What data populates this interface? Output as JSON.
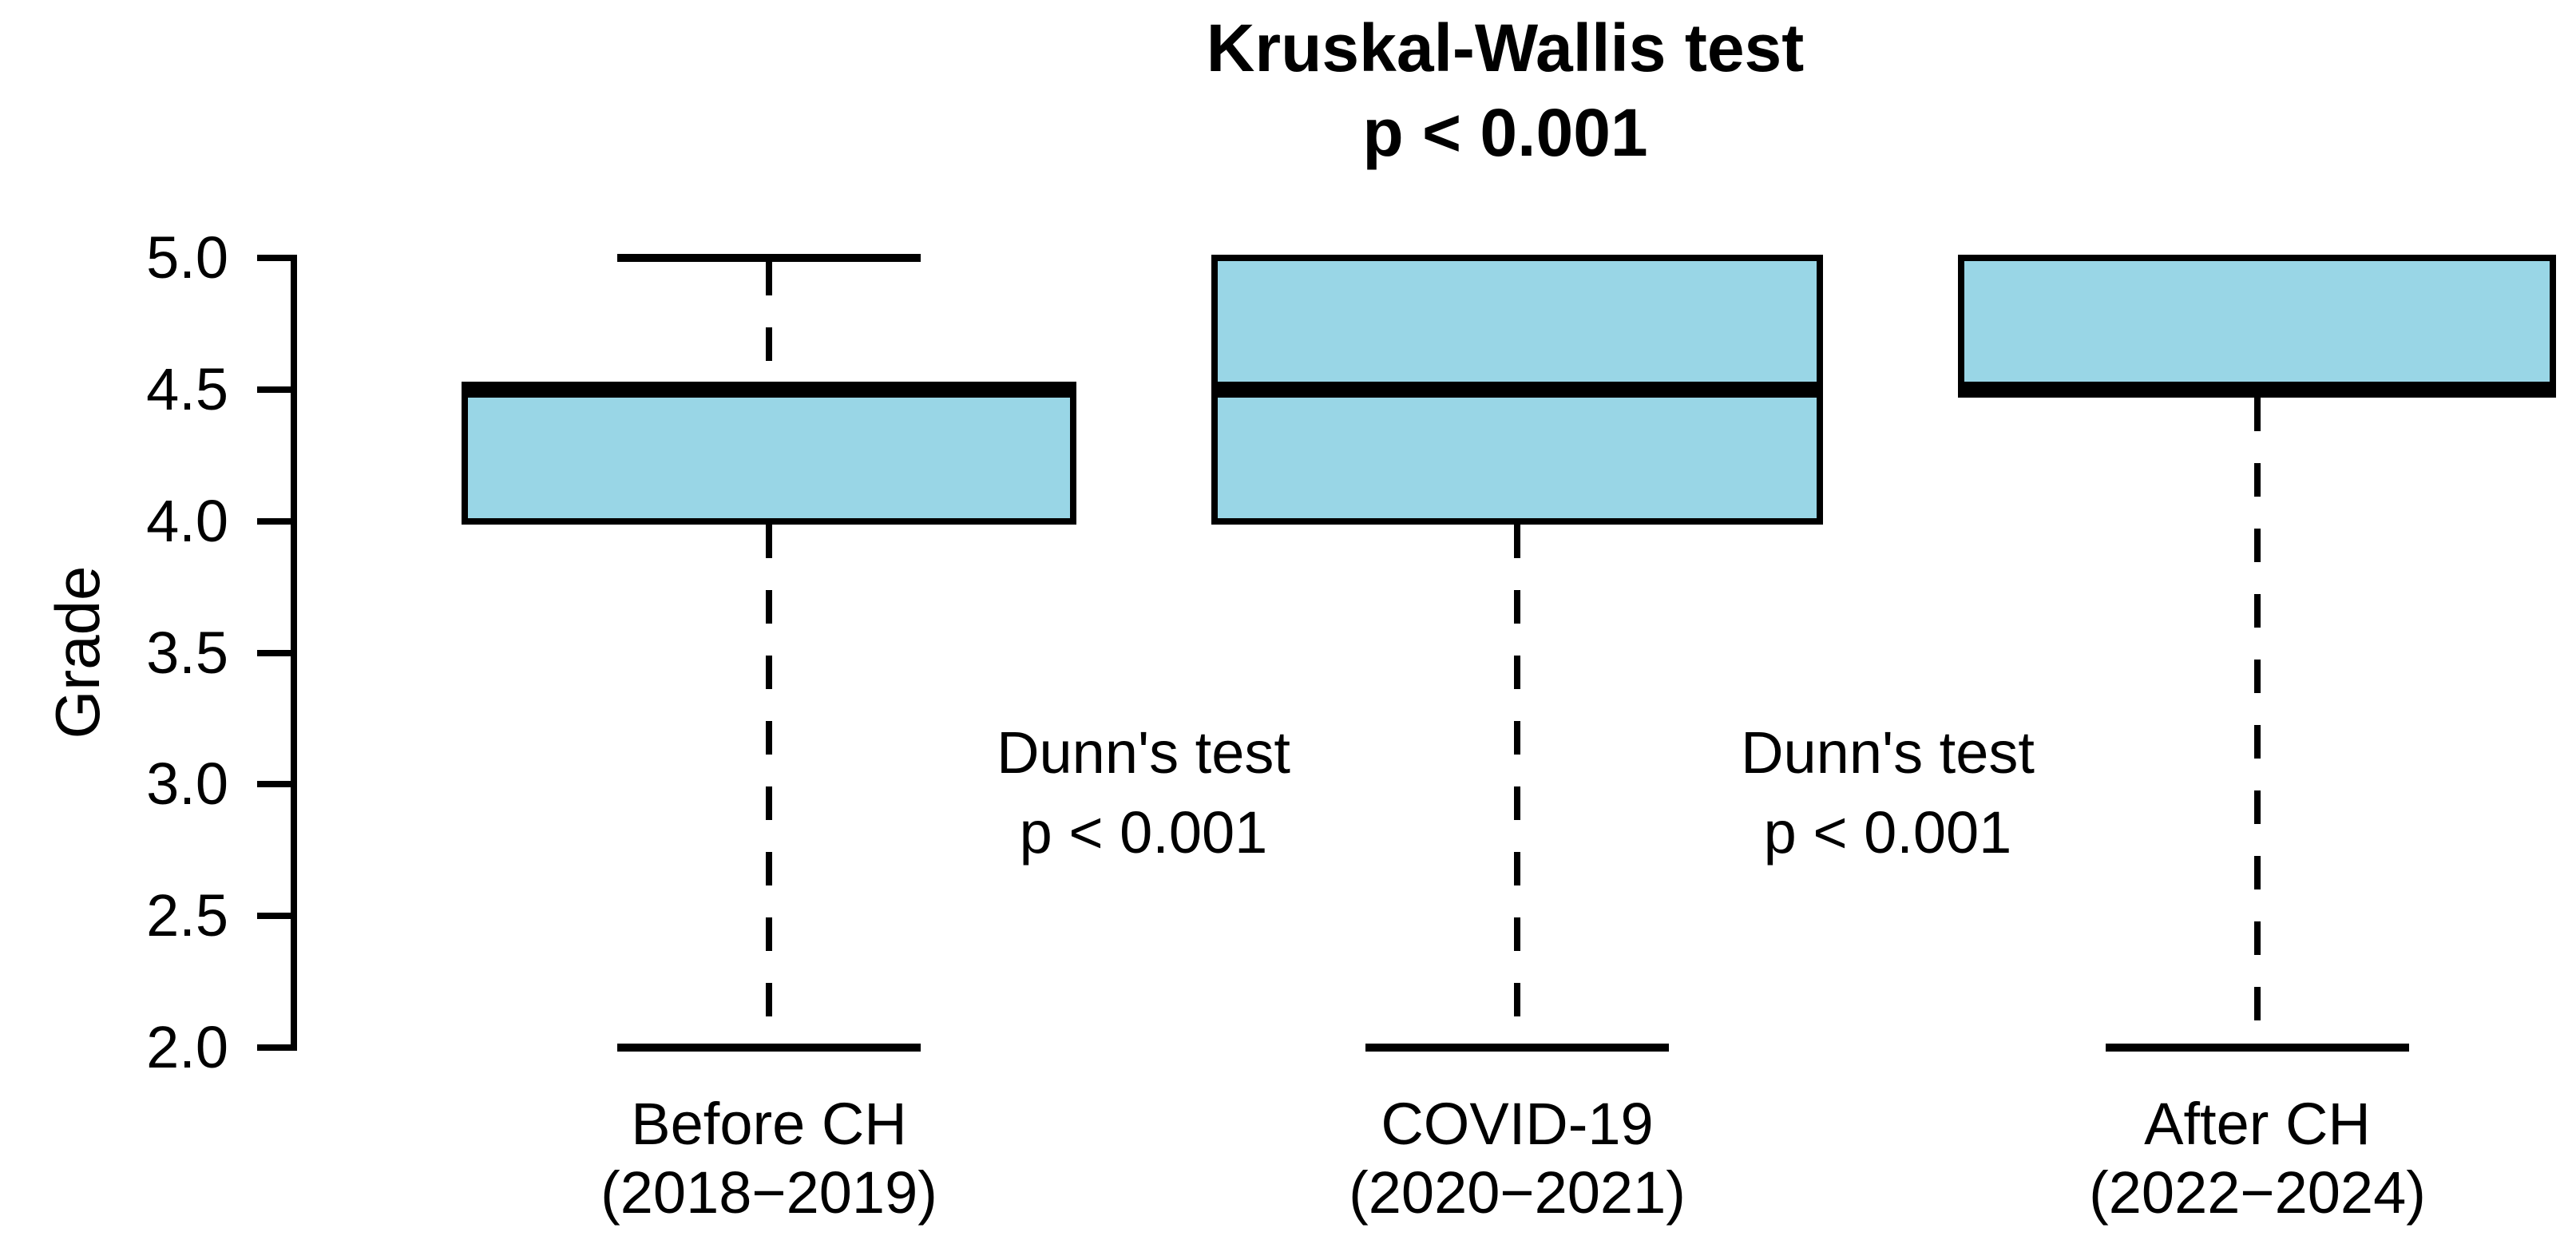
{
  "title": {
    "line1": "Kruskal-Wallis test",
    "line2": "p < 0.001"
  },
  "y_axis": {
    "label": "Grade",
    "ticks": [
      "5.0",
      "4.5",
      "4.0",
      "3.5",
      "3.0",
      "2.5",
      "2.0"
    ],
    "tick_values": [
      5.0,
      4.5,
      4.0,
      3.5,
      3.0,
      2.5,
      2.0
    ]
  },
  "annotations": [
    {
      "line1": "Dunn's test",
      "line2": "p < 0.001",
      "between": [
        0,
        1
      ]
    },
    {
      "line1": "Dunn's test",
      "line2": "p < 0.001",
      "between": [
        1,
        2
      ]
    }
  ],
  "colors": {
    "box_fill": "#99D6E6",
    "line": "#000000",
    "background": "#FFFFFF"
  },
  "chart_data": {
    "type": "boxplot",
    "title": "Kruskal-Wallis test",
    "subtitle": "p < 0.001",
    "ylabel": "Grade",
    "xlabel": "",
    "ylim": [
      2.0,
      5.0
    ],
    "ytick_step": 0.5,
    "grid": false,
    "legend": false,
    "categories": [
      "Before CH (2018−2019)",
      "COVID-19 (2020−2021)",
      "After CH (2022−2024)"
    ],
    "groups": [
      {
        "label_line1": "Before CH",
        "label_line2": "(2018−2019)",
        "whisker_low": 2.0,
        "q1": 4.0,
        "median": 4.5,
        "q3": 4.5,
        "whisker_high": 5.0,
        "has_upper_whisker": true
      },
      {
        "label_line1": "COVID-19",
        "label_line2": "(2020−2021)",
        "whisker_low": 2.0,
        "q1": 4.0,
        "median": 4.5,
        "q3": 5.0,
        "whisker_high": 5.0,
        "has_upper_whisker": false
      },
      {
        "label_line1": "After CH",
        "label_line2": "(2022−2024)",
        "whisker_low": 2.0,
        "q1": 4.5,
        "median": 4.5,
        "q3": 5.0,
        "whisker_high": 5.0,
        "has_upper_whisker": false
      }
    ]
  }
}
